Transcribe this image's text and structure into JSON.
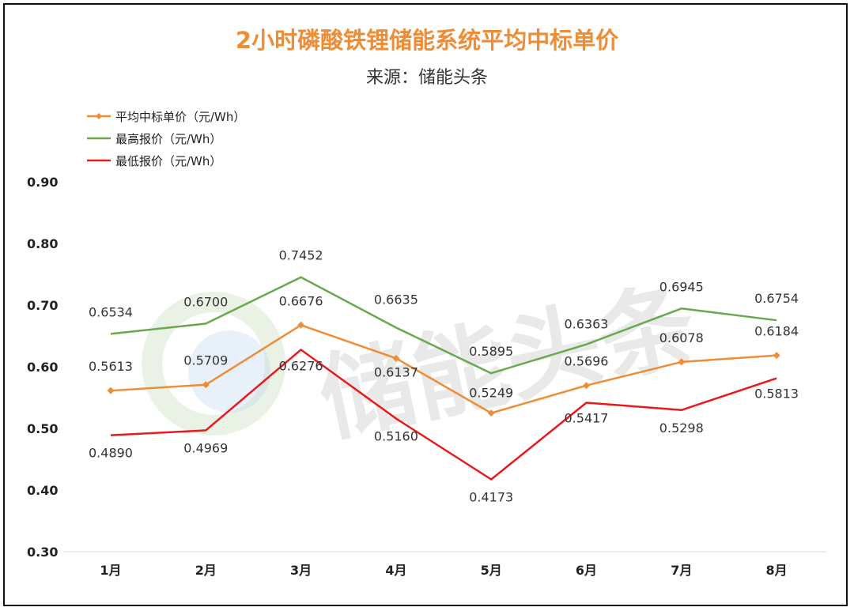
{
  "title": "2小时磷酸铁锂储能系统平均中标单价",
  "subtitle": "来源：储能头条",
  "watermark": "储能头条",
  "chart_data": {
    "type": "line",
    "categories": [
      "1月",
      "2月",
      "3月",
      "4月",
      "5月",
      "6月",
      "7月",
      "8月"
    ],
    "series": [
      {
        "name": "平均中标单价（元/Wh）",
        "color": "#EF8C36",
        "marker": "diamond",
        "values": [
          0.5613,
          0.5709,
          0.6676,
          0.6137,
          0.5249,
          0.5696,
          0.6078,
          0.6184
        ],
        "labels": [
          "0.5613",
          "0.5709",
          "0.6676",
          "0.6137",
          "0.5249",
          "0.5696",
          "0.6078",
          "0.6184"
        ]
      },
      {
        "name": "最高报价（元/Wh）",
        "color": "#6AA84F",
        "marker": "none",
        "values": [
          0.6534,
          0.67,
          0.7452,
          0.6635,
          0.5895,
          0.6363,
          0.6945,
          0.6754
        ],
        "labels": [
          "0.6534",
          "0.6700",
          "0.7452",
          "0.6635",
          "0.5895",
          "0.6363",
          "0.6945",
          "0.6754"
        ]
      },
      {
        "name": "最低报价（元/Wh）",
        "color": "#E8191C",
        "marker": "none",
        "values": [
          0.489,
          0.4969,
          0.6276,
          0.516,
          0.4173,
          0.5417,
          0.5298,
          0.5813
        ],
        "labels": [
          "0.4890",
          "0.4969",
          "0.6276",
          "0.5160",
          "0.4173",
          "0.5417",
          "0.5298",
          "0.5813"
        ]
      }
    ],
    "ylim": [
      0.3,
      0.9
    ],
    "yticks": [
      "0.90",
      "0.80",
      "0.70",
      "0.60",
      "0.50",
      "0.40",
      "0.30"
    ],
    "legend_position": "top-left",
    "grid": false
  }
}
